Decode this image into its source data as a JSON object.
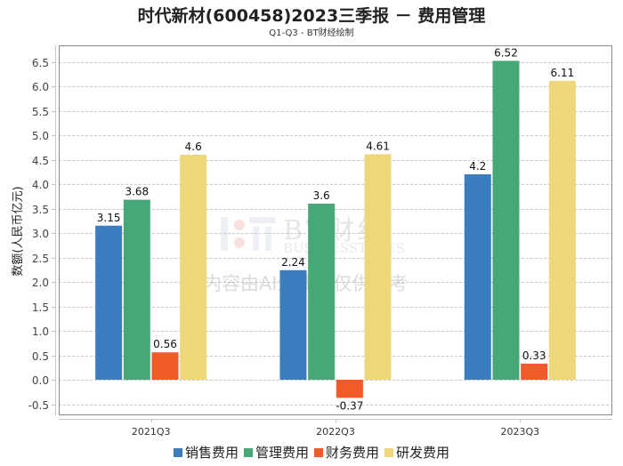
{
  "chart_data": {
    "type": "bar",
    "title": "时代新材(600458)2023三季报 － 费用管理",
    "subtitle": "Q1-Q3 - BT财经绘制",
    "xlabel": "",
    "ylabel": "数额(人民币亿元)",
    "ylim": [
      -0.7,
      6.85
    ],
    "yticks": [
      -0.5,
      0.0,
      0.5,
      1.0,
      1.5,
      2.0,
      2.5,
      3.0,
      3.5,
      4.0,
      4.5,
      5.0,
      5.5,
      6.0,
      6.5
    ],
    "ytick_labels": [
      "-0.5",
      "0.0",
      "0.5",
      "1.0",
      "1.5",
      "2.0",
      "2.5",
      "3.0",
      "3.5",
      "4.0",
      "4.5",
      "5.0",
      "5.5",
      "6.0",
      "6.5"
    ],
    "grid": true,
    "legend_position": "bottom",
    "categories": [
      "2021Q3",
      "2022Q3",
      "2023Q3"
    ],
    "series": [
      {
        "name": "销售费用",
        "color": "#3a7ebf",
        "values": [
          3.15,
          2.24,
          4.2
        ],
        "labels": [
          "3.15",
          "2.24",
          "4.2"
        ]
      },
      {
        "name": "管理费用",
        "color": "#46a877",
        "values": [
          3.68,
          3.6,
          6.52
        ],
        "labels": [
          "3.68",
          "3.6",
          "6.52"
        ]
      },
      {
        "name": "财务费用",
        "color": "#f15a29",
        "values": [
          0.56,
          -0.37,
          0.33
        ],
        "labels": [
          "0.56",
          "-0.37",
          "0.33"
        ]
      },
      {
        "name": "研发费用",
        "color": "#edd77a",
        "values": [
          4.6,
          4.61,
          6.11
        ],
        "labels": [
          "4.6",
          "4.61",
          "6.11"
        ]
      }
    ]
  },
  "watermark": {
    "brand": "BT财经",
    "brand_en": "BUSINESSTIMES",
    "notice": "内容由AI生成，仅供参考"
  }
}
